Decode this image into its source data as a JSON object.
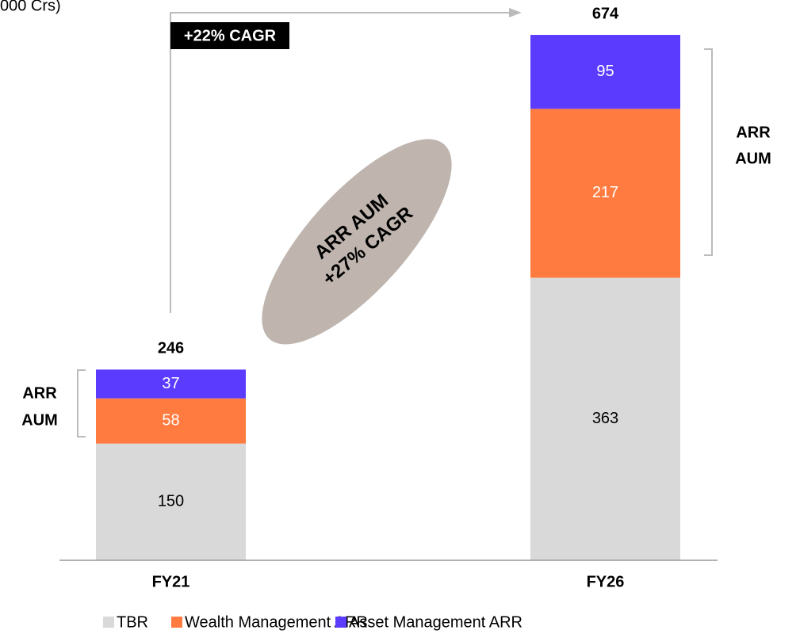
{
  "chart_data": {
    "type": "stacked_bar",
    "title": "000 Crs)",
    "categories": [
      "FY21",
      "FY26"
    ],
    "series": [
      {
        "name": "TBR",
        "color": "#d9d9d9",
        "values": [
          150,
          363
        ]
      },
      {
        "name": "Wealth Management ARR",
        "color": "#ff7b3f",
        "values": [
          58,
          217
        ]
      },
      {
        "name": "Asset Management ARR",
        "color": "#5b3cff",
        "values": [
          37,
          95
        ]
      }
    ],
    "totals": [
      246,
      674
    ],
    "cagr_label": "+22% CAGR",
    "ellipse_label": [
      "ARR AUM",
      "+27% CAGR"
    ],
    "brackets": [
      [
        "ARR",
        "AUM"
      ],
      [
        "ARR",
        "AUM"
      ]
    ]
  }
}
